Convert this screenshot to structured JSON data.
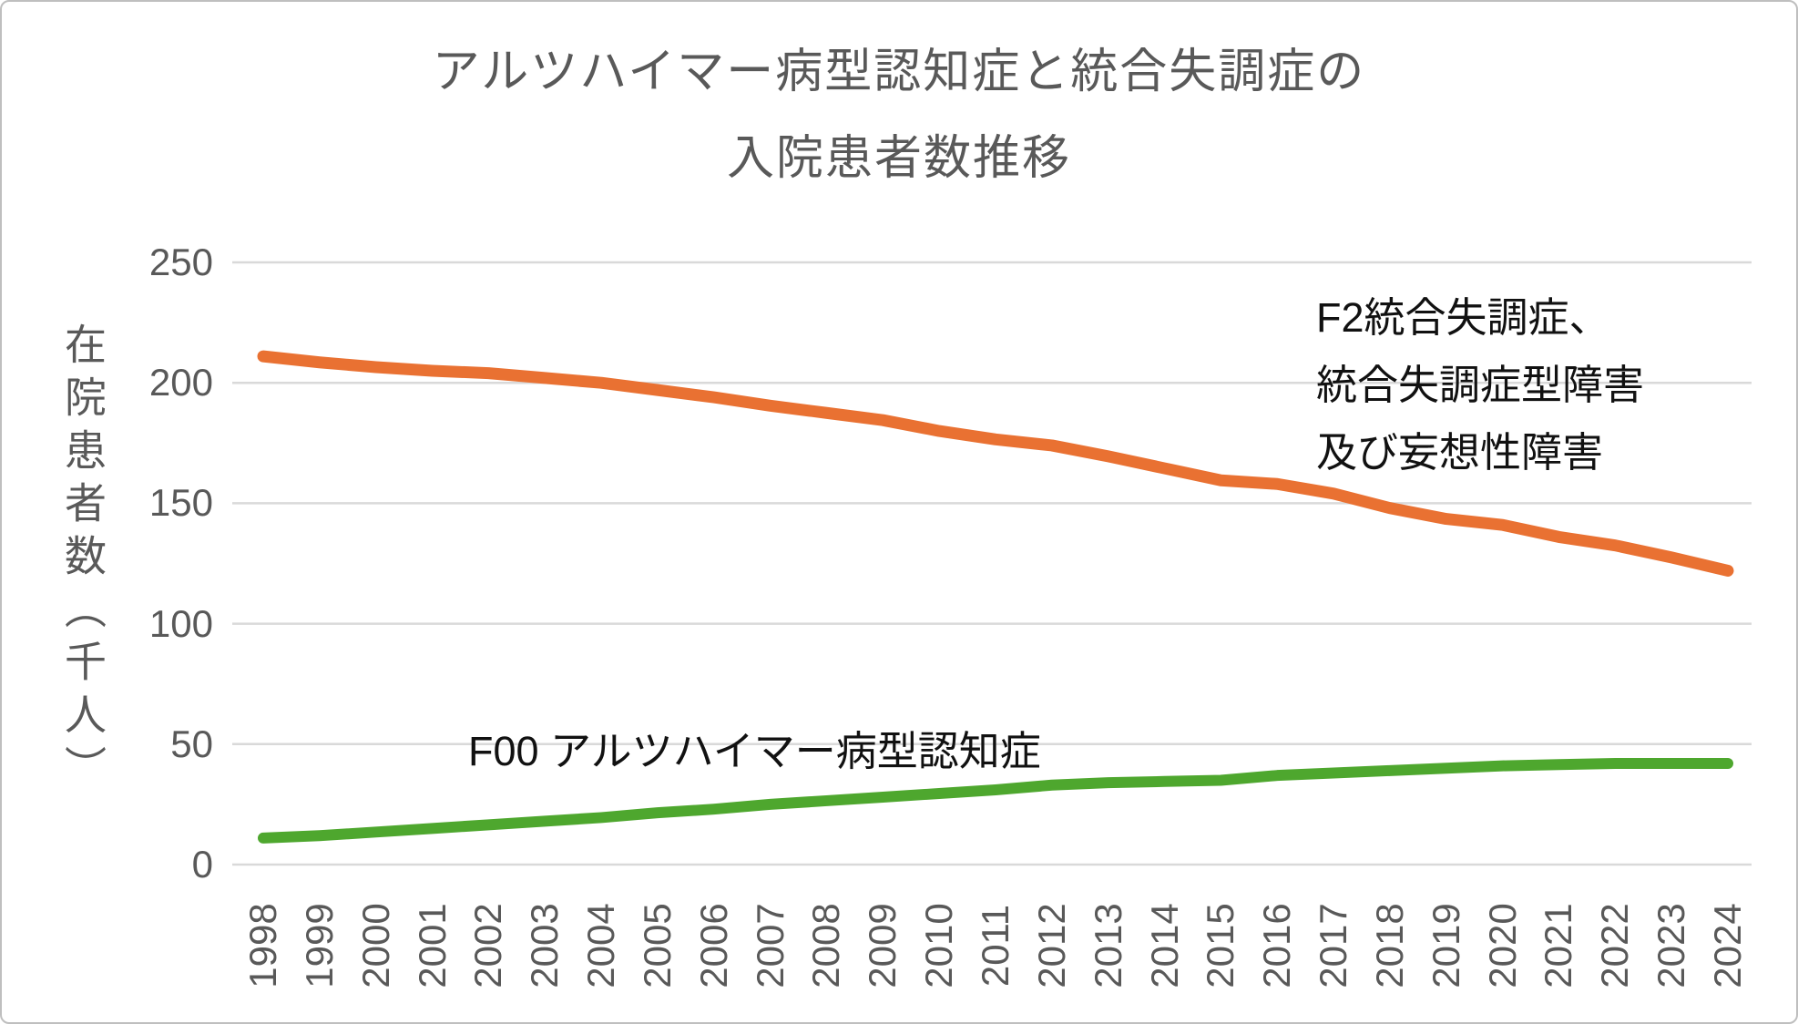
{
  "page": {
    "background": "#FFFFFF",
    "border_color": "#BFBFBF"
  },
  "title": {
    "line1": "アルツハイマー病型認知症と統合失調症の",
    "line2": "入院患者数推移",
    "color": "#595959"
  },
  "annotations": {
    "f2": {
      "line1": "F2統合失調症、",
      "line2": "統合失調症型障害",
      "line3": "及び妄想性障害",
      "color": "#111111"
    },
    "f00": {
      "text": "F00 アルツハイマー病型認知症",
      "color": "#111111"
    }
  },
  "chart_data": {
    "type": "line",
    "title": "アルツハイマー病型認知症と統合失調症の入院患者数推移",
    "ylabel": "在院患者数（千人）",
    "xlabel": "",
    "ylim": [
      0,
      250
    ],
    "yticks": [
      0,
      50,
      100,
      150,
      200,
      250
    ],
    "grid": true,
    "legend_position": "inline-annotations",
    "gridline_color": "#D9D9D9",
    "categories": [
      1998,
      1999,
      2000,
      2001,
      2002,
      2003,
      2004,
      2005,
      2006,
      2007,
      2008,
      2009,
      2010,
      2011,
      2012,
      2013,
      2014,
      2015,
      2016,
      2017,
      2018,
      2019,
      2020,
      2021,
      2022,
      2023,
      2024
    ],
    "series": [
      {
        "name": "F2統合失調症、統合失調症型障害及び妄想性障害",
        "color": "#E97132",
        "stroke_width": 13,
        "values": [
          211,
          208.5,
          206.5,
          205,
          204,
          202,
          200,
          197,
          194,
          190.5,
          187.5,
          184.5,
          180,
          176.5,
          174,
          169.5,
          164.5,
          159.5,
          158,
          154,
          148,
          143.5,
          141,
          136,
          132.5,
          127.5,
          122
        ]
      },
      {
        "name": "F00 アルツハイマー病型認知症",
        "color": "#4EA72E",
        "stroke_width": 12,
        "values": [
          11,
          12,
          13.5,
          15,
          16.5,
          18,
          19.5,
          21.5,
          23,
          25,
          26.5,
          28,
          29.5,
          31,
          33,
          34,
          34.5,
          35,
          37,
          38,
          39,
          40,
          41,
          41.5,
          42,
          42,
          42
        ]
      }
    ]
  }
}
